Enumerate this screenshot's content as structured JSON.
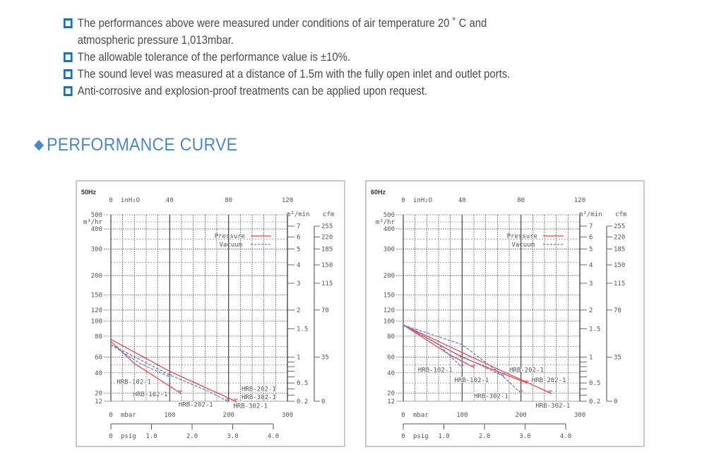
{
  "notes": [
    {
      "line1": "The performances above were measured under conditions of air temperature 20 ˚ C and",
      "line2": "atmospheric pressure 1,013mbar."
    },
    {
      "line1": "The allowable tolerance of the performance value is ±10%."
    },
    {
      "line1": "The sound level was measured at a distance of 1.5m with the fully open inlet and outlet ports."
    },
    {
      "line1": "Anti-corrosive and explosion-proof treatments can be applied upon request."
    }
  ],
  "heading": {
    "icon": "diamond-icon",
    "symbol": "◆",
    "text": "PERFORMANCE CURVE"
  },
  "colors": {
    "pressure": "#e8484e",
    "vacuum": "#6b7fc4",
    "bullet": "#1f6fb8",
    "heading": "#4d88c6"
  },
  "chart_data": [
    {
      "type": "line",
      "title": "50Hz",
      "xlabel": "mbar",
      "xlim": [
        0,
        300
      ],
      "xticks": [
        0,
        100,
        200,
        300
      ],
      "top_axis": {
        "label": "inH₂O",
        "ticks": [
          0,
          40,
          80,
          120
        ]
      },
      "psig_axis": {
        "label": "psig",
        "ticks": [
          0,
          1.0,
          2.0,
          3.0,
          4.0
        ],
        "tick_labels": [
          "0",
          "1.0",
          "2.0",
          "3.0",
          "4.0"
        ]
      },
      "ylabel": "m³/hr",
      "yticks": [
        500,
        400,
        300,
        200,
        150,
        120,
        100,
        80,
        60,
        40,
        20,
        12
      ],
      "right_axis": {
        "label": "m³/min",
        "ticks": [
          7,
          6,
          5,
          4,
          3,
          2,
          1.5,
          1,
          0.5,
          0.2
        ],
        "tick_labels": [
          "7",
          "6",
          "5",
          "4",
          "3",
          "2",
          "1.5",
          "1",
          "0.5",
          "0.2"
        ]
      },
      "cfm_axis": {
        "label": "cfm",
        "ticks": [
          [
            255,
            7
          ],
          [
            220,
            6
          ],
          [
            185,
            5
          ],
          [
            150,
            4
          ],
          [
            115,
            3
          ],
          [
            70,
            2
          ],
          [
            35,
            1
          ],
          [
            0,
            0.2
          ]
        ]
      },
      "legend": [
        {
          "name": "Pressure",
          "style": "solid"
        },
        {
          "name": "Vacuum",
          "style": "dashed"
        }
      ],
      "series": [
        {
          "name": "Pressure HRB-102-1",
          "kind": "pressure",
          "points": [
            [
              0,
              75
            ],
            [
              40,
              52
            ],
            [
              118,
              20
            ]
          ]
        },
        {
          "name": "Pressure HRB-202-1 / HRB-302-1",
          "kind": "pressure",
          "points": [
            [
              0,
              77
            ],
            [
              100,
              42
            ],
            [
              212,
              12
            ]
          ]
        },
        {
          "name": "Vacuum HRB-102-1",
          "kind": "vacuum",
          "points": [
            [
              0,
              72
            ],
            [
              50,
              52
            ],
            [
              100,
              36
            ]
          ]
        },
        {
          "name": "Vacuum HRB-202-1 / HRB-302-1",
          "kind": "vacuum",
          "points": [
            [
              0,
              72
            ],
            [
              100,
              38
            ],
            [
              165,
              22
            ],
            [
              198,
              12
            ]
          ]
        }
      ],
      "annotations": [
        {
          "text": "HRB-102-1",
          "x": 10,
          "y": 31
        },
        {
          "text": "HRB-102-1",
          "x": 38,
          "y": 19
        },
        {
          "text": "HRB-202-1",
          "x": 115,
          "y": 9
        },
        {
          "text": "HRB-202-1",
          "x": 222,
          "y": 24
        },
        {
          "text": "HRB-302-1",
          "x": 222,
          "y": 16
        },
        {
          "text": "HRB-302-1",
          "x": 208,
          "y": 6
        }
      ]
    },
    {
      "type": "line",
      "title": "60Hz",
      "xlabel": "mbar",
      "xlim": [
        0,
        300
      ],
      "xticks": [
        0,
        100,
        200,
        300
      ],
      "top_axis": {
        "label": "inH₂O",
        "ticks": [
          0,
          40,
          80,
          120
        ]
      },
      "psig_axis": {
        "label": "psig",
        "ticks": [
          0,
          1.0,
          2.0,
          3.0,
          4.0
        ],
        "tick_labels": [
          "0",
          "1.0",
          "2.0",
          "3.0",
          "4.0"
        ]
      },
      "ylabel": "m³/hr",
      "yticks": [
        500,
        400,
        300,
        200,
        150,
        120,
        100,
        80,
        60,
        40,
        20,
        12
      ],
      "right_axis": {
        "label": "m³/min",
        "ticks": [
          7,
          6,
          5,
          4,
          3,
          2,
          1.5,
          1,
          0.5,
          0.2
        ],
        "tick_labels": [
          "7",
          "6",
          "5",
          "4",
          "3",
          "2",
          "1.5",
          "1",
          "0.5",
          "0.2"
        ]
      },
      "cfm_axis": {
        "label": "cfm",
        "ticks": [
          [
            255,
            7
          ],
          [
            220,
            6
          ],
          [
            185,
            5
          ],
          [
            150,
            4
          ],
          [
            115,
            3
          ],
          [
            70,
            2
          ],
          [
            35,
            1
          ],
          [
            0,
            0.2
          ]
        ]
      },
      "legend": [
        {
          "name": "Pressure",
          "style": "solid"
        },
        {
          "name": "Vacuum",
          "style": "dashed"
        }
      ],
      "series": [
        {
          "name": "Pressure HRB-102-1",
          "kind": "pressure",
          "points": [
            [
              0,
              95
            ],
            [
              80,
              62
            ],
            [
              120,
              47
            ]
          ]
        },
        {
          "name": "Pressure HRB-202-1",
          "kind": "pressure",
          "points": [
            [
              0,
              95
            ],
            [
              100,
              60
            ],
            [
              175,
              38
            ],
            [
              210,
              30
            ]
          ]
        },
        {
          "name": "Pressure HRB-302-1",
          "kind": "pressure",
          "points": [
            [
              0,
              95
            ],
            [
              140,
              52
            ],
            [
              250,
              20
            ]
          ]
        },
        {
          "name": "Vacuum HRB-102-1",
          "kind": "vacuum",
          "points": [
            [
              0,
              95
            ],
            [
              60,
              72
            ],
            [
              100,
              47
            ]
          ]
        },
        {
          "name": "Vacuum HRB-202-1",
          "kind": "vacuum",
          "points": [
            [
              0,
              95
            ],
            [
              80,
              66
            ],
            [
              170,
              37
            ]
          ]
        },
        {
          "name": "Vacuum HRB-302-1",
          "kind": "vacuum",
          "points": [
            [
              0,
              95
            ],
            [
              100,
              72
            ],
            [
              160,
              42
            ],
            [
              200,
              20
            ]
          ]
        }
      ],
      "annotations": [
        {
          "text": "HRB-102-1",
          "x": 25,
          "y": 44
        },
        {
          "text": "HRB-102-1",
          "x": 87,
          "y": 33
        },
        {
          "text": "HRB-202-1",
          "x": 180,
          "y": 44
        },
        {
          "text": "HRB-202-1",
          "x": 218,
          "y": 33
        },
        {
          "text": "HRB-302-1",
          "x": 120,
          "y": 17
        },
        {
          "text": "HRB-302-1",
          "x": 225,
          "y": 8
        }
      ]
    }
  ]
}
